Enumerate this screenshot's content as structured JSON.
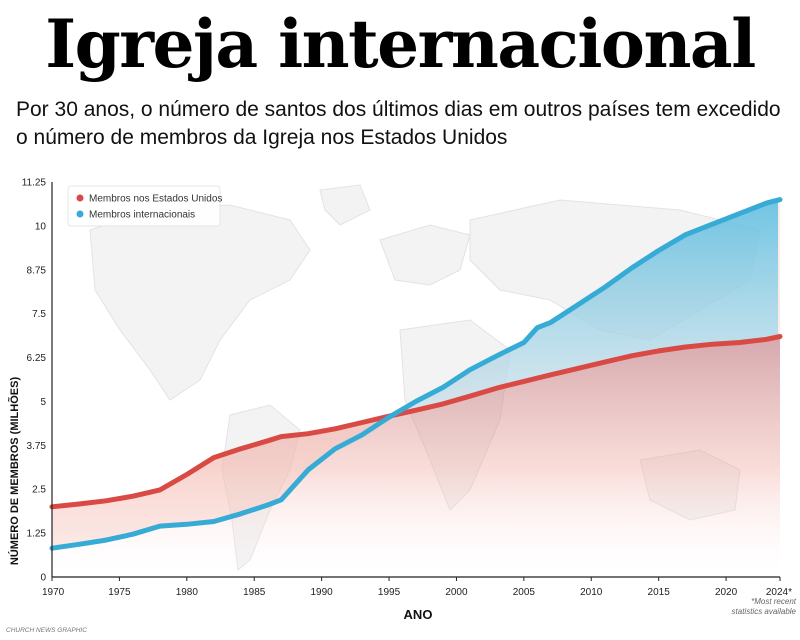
{
  "header": {
    "title": "Igreja internacional",
    "subtitle": "Por 30 anos, o número de santos dos últimos dias em outros países tem excedido o número de membros da Igreja nos Estados Unidos"
  },
  "credit": "CHURCH NEWS GRAPHIC",
  "footnote": [
    "*Most recent",
    "statistics available"
  ],
  "colors": {
    "us": "#d94a45",
    "intl": "#36abd6",
    "us_fill": "#f3b7ae",
    "intl_fill": "#a9dcef"
  },
  "chart_data": {
    "type": "area",
    "xlabel": "ANO",
    "ylabel": "NÚMERO DE MEMBROS (MILHÕES)",
    "xlim": [
      1970,
      2024
    ],
    "ylim": [
      0,
      11.25
    ],
    "x_ticks": [
      1970,
      1975,
      1980,
      1985,
      1990,
      1995,
      2000,
      2005,
      2010,
      2015,
      2020,
      2024
    ],
    "x_tick_labels": [
      "1970",
      "1975",
      "1980",
      "1985",
      "1990",
      "1995",
      "2000",
      "2005",
      "2010",
      "2015",
      "2020",
      "2024*"
    ],
    "y_ticks": [
      0,
      1.25,
      2.5,
      3.75,
      5,
      6.25,
      7.5,
      8.75,
      10,
      11.25
    ],
    "y_tick_labels": [
      "0",
      "1.25",
      "2.5",
      "3.75",
      "5",
      "6.25",
      "7.5",
      "8.75",
      "10",
      "11.25"
    ],
    "legend_position": "top-left",
    "background": "world map",
    "series": [
      {
        "name": "Membros nos Estados Unidos",
        "color": "#d94a45",
        "x": [
          1970,
          1972,
          1974,
          1976,
          1978,
          1980,
          1982,
          1984,
          1986,
          1987,
          1989,
          1991,
          1993,
          1995,
          1997,
          1999,
          2001,
          2003,
          2005,
          2007,
          2009,
          2011,
          2013,
          2015,
          2017,
          2019,
          2021,
          2023,
          2024
        ],
        "y": [
          2.0,
          2.08,
          2.17,
          2.3,
          2.48,
          2.92,
          3.4,
          3.65,
          3.88,
          4.0,
          4.08,
          4.22,
          4.4,
          4.58,
          4.75,
          4.93,
          5.15,
          5.38,
          5.57,
          5.76,
          5.94,
          6.12,
          6.3,
          6.44,
          6.55,
          6.63,
          6.68,
          6.77,
          6.85
        ]
      },
      {
        "name": "Membros internacionais",
        "color": "#36abd6",
        "x": [
          1970,
          1972,
          1974,
          1976,
          1978,
          1980,
          1982,
          1984,
          1986,
          1987,
          1989,
          1991,
          1993,
          1995,
          1997,
          1999,
          2001,
          2003,
          2005,
          2006,
          2007,
          2009,
          2011,
          2013,
          2015,
          2017,
          2019,
          2021,
          2023,
          2024
        ],
        "y": [
          0.82,
          0.93,
          1.05,
          1.22,
          1.45,
          1.5,
          1.58,
          1.8,
          2.05,
          2.2,
          3.05,
          3.65,
          4.05,
          4.55,
          5.0,
          5.4,
          5.9,
          6.3,
          6.68,
          7.1,
          7.25,
          7.75,
          8.25,
          8.8,
          9.3,
          9.75,
          10.05,
          10.35,
          10.65,
          10.75
        ]
      }
    ]
  }
}
